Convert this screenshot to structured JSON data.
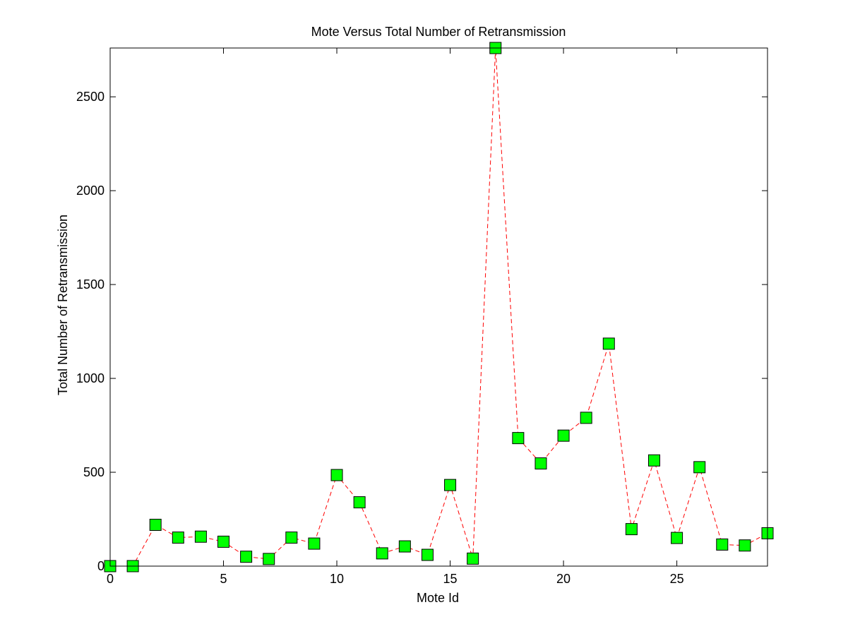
{
  "chart_data": {
    "type": "line",
    "title": "Mote Versus Total Number of Retransmission",
    "xlabel": "Mote Id",
    "ylabel": "Total Number of Retransmission",
    "xlim": [
      0,
      29
    ],
    "ylim": [
      0,
      2760
    ],
    "xticks": [
      0,
      5,
      10,
      15,
      20,
      25
    ],
    "yticks": [
      0,
      500,
      1000,
      1500,
      2000,
      2500
    ],
    "grid": false,
    "colors": {
      "line": "#ff0000",
      "marker_fill": "#00ff00",
      "marker_edge": "#000000",
      "axes": "#000000"
    },
    "series": [
      {
        "x": [
          0,
          1,
          2,
          3,
          4,
          5,
          6,
          7,
          8,
          9,
          10,
          11,
          12,
          13,
          14,
          15,
          16,
          17,
          18,
          19,
          20,
          21,
          22,
          23,
          24,
          25,
          26,
          27,
          28,
          29
        ],
        "values": [
          0,
          0,
          220,
          152,
          157,
          130,
          50,
          38,
          152,
          120,
          485,
          340,
          68,
          105,
          60,
          432,
          40,
          2760,
          682,
          547,
          695,
          790,
          1185,
          197,
          563,
          150,
          527,
          115,
          110,
          175
        ]
      }
    ]
  }
}
